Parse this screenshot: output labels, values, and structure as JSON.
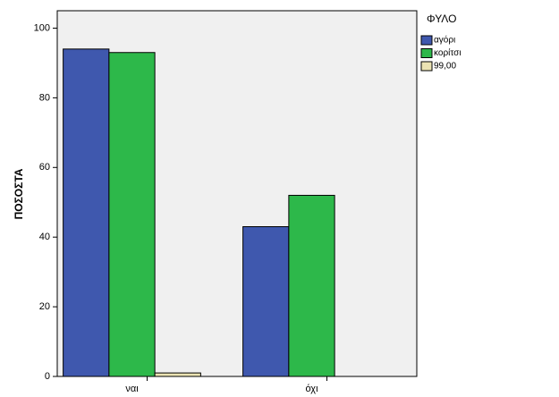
{
  "chart_data": {
    "type": "bar",
    "categories": [
      "ναι",
      "όχι"
    ],
    "series": [
      {
        "name": "αγόρι",
        "color": "#3f58ae",
        "values": [
          94,
          43
        ]
      },
      {
        "name": "κορίτσι",
        "color": "#2db84a",
        "values": [
          93,
          52
        ]
      },
      {
        "name": "99,00",
        "color": "#ebe3b3",
        "values": [
          1,
          null
        ]
      }
    ],
    "ylabel": "ΠΟΣΟΣΤΑ",
    "legend_title": "ΦΥΛΟ",
    "ylim": [
      0,
      105
    ],
    "yticks": [
      0,
      20,
      40,
      60,
      80,
      100
    ]
  }
}
